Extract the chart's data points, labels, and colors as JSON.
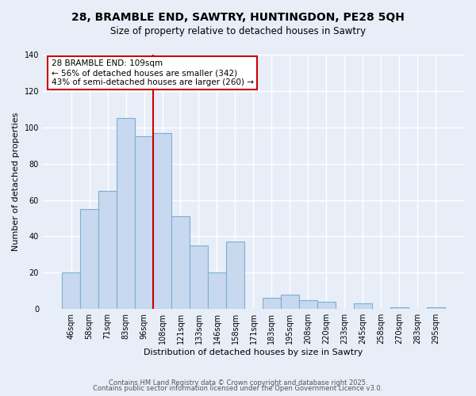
{
  "title_line1": "28, BRAMBLE END, SAWTRY, HUNTINGDON, PE28 5QH",
  "title_line2": "Size of property relative to detached houses in Sawtry",
  "xlabel": "Distribution of detached houses by size in Sawtry",
  "ylabel": "Number of detached properties",
  "categories": [
    "46sqm",
    "58sqm",
    "71sqm",
    "83sqm",
    "96sqm",
    "108sqm",
    "121sqm",
    "133sqm",
    "146sqm",
    "158sqm",
    "171sqm",
    "183sqm",
    "195sqm",
    "208sqm",
    "220sqm",
    "233sqm",
    "245sqm",
    "258sqm",
    "270sqm",
    "283sqm",
    "295sqm"
  ],
  "values": [
    20,
    55,
    65,
    105,
    95,
    97,
    51,
    35,
    20,
    37,
    0,
    6,
    8,
    5,
    4,
    0,
    3,
    0,
    1,
    0,
    1
  ],
  "bar_color": "#c8d8ee",
  "bar_edge_color": "#7aaard4",
  "highlight_index": 5,
  "highlight_line_color": "#cc0000",
  "ylim": [
    0,
    140
  ],
  "yticks": [
    0,
    20,
    40,
    60,
    80,
    100,
    120,
    140
  ],
  "annotation_title": "28 BRAMBLE END: 109sqm",
  "annotation_line1": "← 56% of detached houses are smaller (342)",
  "annotation_line2": "43% of semi-detached houses are larger (260) →",
  "annotation_box_color": "#ffffff",
  "annotation_box_edge_color": "#cc0000",
  "footer_line1": "Contains HM Land Registry data © Crown copyright and database right 2025.",
  "footer_line2": "Contains public sector information licensed under the Open Government Licence v3.0.",
  "background_color": "#e8eef8",
  "grid_color": "#ffffff",
  "title_fontsize": 10,
  "subtitle_fontsize": 8.5,
  "axis_label_fontsize": 8,
  "tick_fontsize": 7,
  "footer_fontsize": 6
}
